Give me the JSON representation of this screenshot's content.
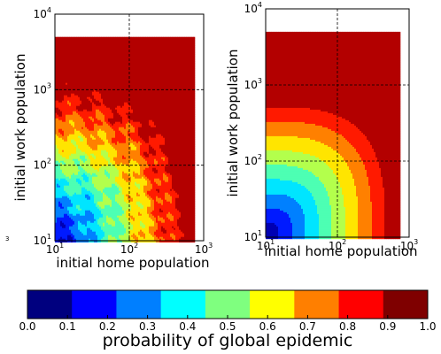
{
  "chart_data": [
    {
      "type": "heatmap",
      "title": "",
      "xlabel": "initial home population",
      "ylabel": "initial work population",
      "xscale": "log",
      "yscale": "log",
      "xlim": [
        10,
        1000
      ],
      "ylim": [
        10,
        10000
      ],
      "xticks": [
        {
          "base": "10",
          "exp": "1",
          "value": 10
        },
        {
          "base": "10",
          "exp": "2",
          "value": 100
        },
        {
          "base": "10",
          "exp": "3",
          "value": 1000
        }
      ],
      "yticks": [
        {
          "base": "10",
          "exp": "1",
          "value": 10
        },
        {
          "base": "10",
          "exp": "2",
          "value": 100
        },
        {
          "base": "10",
          "exp": "3",
          "value": 1000
        },
        {
          "base": "10",
          "exp": "4",
          "value": 10000
        }
      ],
      "grid": true,
      "data_extent": {
        "x": [
          10,
          750
        ],
        "y": [
          10,
          5000
        ]
      },
      "z_label": "probability of global epidemic",
      "contour_levels": [
        0.1,
        0.2,
        0.3,
        0.4,
        0.5,
        0.6,
        0.7,
        0.8,
        0.9
      ],
      "description_of_field": "noisy contours; probability rises with both home and work population, reaching ~1.0 above work population ~1000 or home population ~700"
    },
    {
      "type": "heatmap",
      "title": "",
      "xlabel": "initial home population",
      "ylabel": "initial work population",
      "xscale": "log",
      "yscale": "log",
      "xlim": [
        10,
        1000
      ],
      "ylim": [
        10,
        10000
      ],
      "xticks": [
        {
          "base": "10",
          "exp": "1",
          "value": 10
        },
        {
          "base": "10",
          "exp": "2",
          "value": 100
        },
        {
          "base": "10",
          "exp": "3",
          "value": 1000
        }
      ],
      "yticks": [
        {
          "base": "10",
          "exp": "1",
          "value": 10
        },
        {
          "base": "10",
          "exp": "2",
          "value": 100
        },
        {
          "base": "10",
          "exp": "3",
          "value": 1000
        },
        {
          "base": "10",
          "exp": "4",
          "value": 10000
        }
      ],
      "grid": true,
      "data_extent": {
        "x": [
          10,
          750
        ],
        "y": [
          10,
          5000
        ]
      },
      "z_label": "probability of global epidemic",
      "contour_levels": [
        0.1,
        0.2,
        0.3,
        0.4,
        0.5,
        0.6,
        0.7,
        0.8,
        0.9
      ],
      "description_of_field": "smooth concentric contours centred at the lower-left corner; probability near 0 at (10,10) rising to 1.0 above work population ~800 or home population ~700"
    }
  ],
  "colorbar": {
    "label": "probability of global epidemic",
    "ticks": [
      "0.0",
      "0.1",
      "0.2",
      "0.3",
      "0.4",
      "0.5",
      "0.6",
      "0.7",
      "0.8",
      "0.9",
      "1.0"
    ],
    "range": [
      0,
      1
    ],
    "colormap": "jet",
    "colors": [
      "#00007f",
      "#0000ff",
      "#007fff",
      "#00ffff",
      "#7fff7f",
      "#ffff00",
      "#ff7f00",
      "#ff0000",
      "#7f0000"
    ]
  },
  "stray_mark": "3"
}
